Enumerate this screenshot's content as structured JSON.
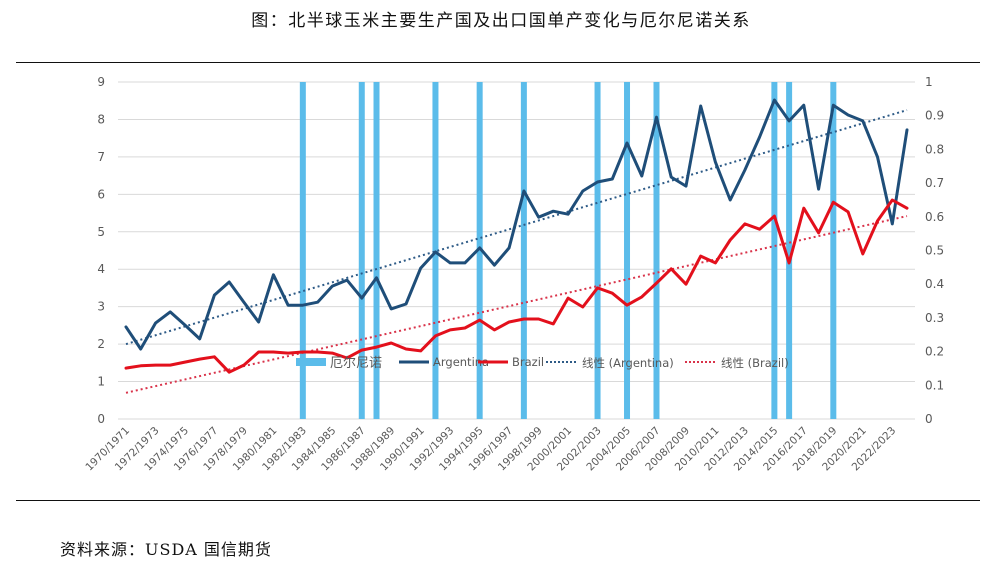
{
  "title": "图：北半球玉米主要生产国及出口国单产变化与厄尔尼诺关系",
  "source": "资料来源：USDA 国信期货",
  "colors": {
    "argentina": "#1f4e79",
    "brazil": "#e3101c",
    "elnino": "#5bbcea",
    "grid": "#d9d9d9",
    "argentina_trend": "#2e5b87",
    "brazil_trend": "#d9334a"
  },
  "chart_data": {
    "type": "line",
    "title": "北半球玉米主要生产国及出口国单产变化与厄尔尼诺关系",
    "xlabel": "",
    "ylabel": "",
    "ylim": [
      0,
      9
    ],
    "y2lim": [
      0,
      1
    ],
    "yticks": [
      "0",
      "1",
      "2",
      "3",
      "4",
      "5",
      "6",
      "7",
      "8",
      "9"
    ],
    "y2ticks": [
      "0",
      "0.1",
      "0.2",
      "0.3",
      "0.4",
      "0.5",
      "0.6",
      "0.7",
      "0.8",
      "0.9",
      "1"
    ],
    "grid": true,
    "legend_position": "inside-bottom",
    "x": [
      "1970/1971",
      "1971/1972",
      "1972/1973",
      "1973/1974",
      "1974/1975",
      "1975/1976",
      "1976/1977",
      "1977/1978",
      "1978/1979",
      "1979/1980",
      "1980/1981",
      "1981/1982",
      "1982/1983",
      "1983/1984",
      "1984/1985",
      "1985/1986",
      "1986/1987",
      "1987/1988",
      "1988/1989",
      "1989/1990",
      "1990/1991",
      "1991/1992",
      "1992/1993",
      "1993/1994",
      "1994/1995",
      "1995/1996",
      "1996/1997",
      "1997/1998",
      "1998/1999",
      "1999/2000",
      "2000/2001",
      "2001/2002",
      "2002/2003",
      "2003/2004",
      "2004/2005",
      "2005/2006",
      "2006/2007",
      "2007/2008",
      "2008/2009",
      "2009/2010",
      "2010/2011",
      "2011/2012",
      "2012/2013",
      "2013/2014",
      "2014/2015",
      "2015/2016",
      "2016/2017",
      "2017/2018",
      "2018/2019",
      "2019/2020",
      "2020/2021",
      "2021/2022",
      "2022/2023",
      "2023/2024"
    ],
    "xtick_labels": [
      "1970/1971",
      "1972/1973",
      "1974/1975",
      "1976/1977",
      "1978/1979",
      "1980/1981",
      "1982/1983",
      "1984/1985",
      "1986/1987",
      "1988/1989",
      "1990/1991",
      "1992/1993",
      "1994/1995",
      "1996/1997",
      "1998/1999",
      "2000/2001",
      "2002/2003",
      "2004/2005",
      "2006/2007",
      "2008/2009",
      "2010/2011",
      "2012/2013",
      "2014/2015",
      "2016/2017",
      "2018/2019",
      "2020/2021",
      "2022/2023"
    ],
    "series": [
      {
        "name": "Argentina",
        "type": "line",
        "axis": "left",
        "values": [
          2.46,
          1.87,
          2.56,
          2.86,
          2.51,
          2.14,
          3.31,
          3.66,
          3.12,
          2.59,
          3.85,
          3.04,
          3.04,
          3.12,
          3.55,
          3.71,
          3.23,
          3.77,
          2.94,
          3.07,
          4.03,
          4.46,
          4.17,
          4.17,
          4.57,
          4.11,
          4.57,
          6.09,
          5.39,
          5.55,
          5.47,
          6.09,
          6.33,
          6.41,
          7.37,
          6.49,
          8.06,
          6.46,
          6.22,
          8.36,
          6.86,
          5.85,
          6.65,
          7.53,
          8.52,
          7.96,
          8.38,
          6.14,
          8.38,
          8.12,
          7.96,
          7.0,
          5.21,
          7.72
        ]
      },
      {
        "name": "Brazil",
        "type": "line",
        "axis": "left",
        "values": [
          1.36,
          1.42,
          1.44,
          1.44,
          1.52,
          1.6,
          1.66,
          1.25,
          1.44,
          1.79,
          1.79,
          1.76,
          1.79,
          1.79,
          1.76,
          1.63,
          1.84,
          1.92,
          2.03,
          1.87,
          1.82,
          2.22,
          2.38,
          2.43,
          2.64,
          2.38,
          2.59,
          2.67,
          2.67,
          2.54,
          3.23,
          2.99,
          3.5,
          3.36,
          3.04,
          3.26,
          3.63,
          4.01,
          3.6,
          4.35,
          4.17,
          4.78,
          5.21,
          5.07,
          5.42,
          4.17,
          5.63,
          4.97,
          5.79,
          5.53,
          4.41,
          5.29,
          5.85,
          5.63
        ]
      },
      {
        "name": "厄尔尼诺",
        "type": "bar",
        "axis": "right",
        "years": [
          "1982/1983",
          "1986/1987",
          "1987/1988",
          "1991/1992",
          "1994/1995",
          "1997/1998",
          "2002/2003",
          "2004/2005",
          "2006/2007",
          "2014/2015",
          "2015/2016",
          "2018/2019"
        ],
        "value": 1
      },
      {
        "name": "线性 (Argentina)",
        "type": "trendline",
        "axis": "left",
        "start": 2.0,
        "end": 8.25
      },
      {
        "name": "线性 (Brazil)",
        "type": "trendline",
        "axis": "left",
        "start": 0.7,
        "end": 5.42
      }
    ],
    "legend": [
      "厄尔尼诺",
      "Argentina",
      "Brazil",
      "线性 (Argentina)",
      "线性 (Brazil)"
    ]
  }
}
